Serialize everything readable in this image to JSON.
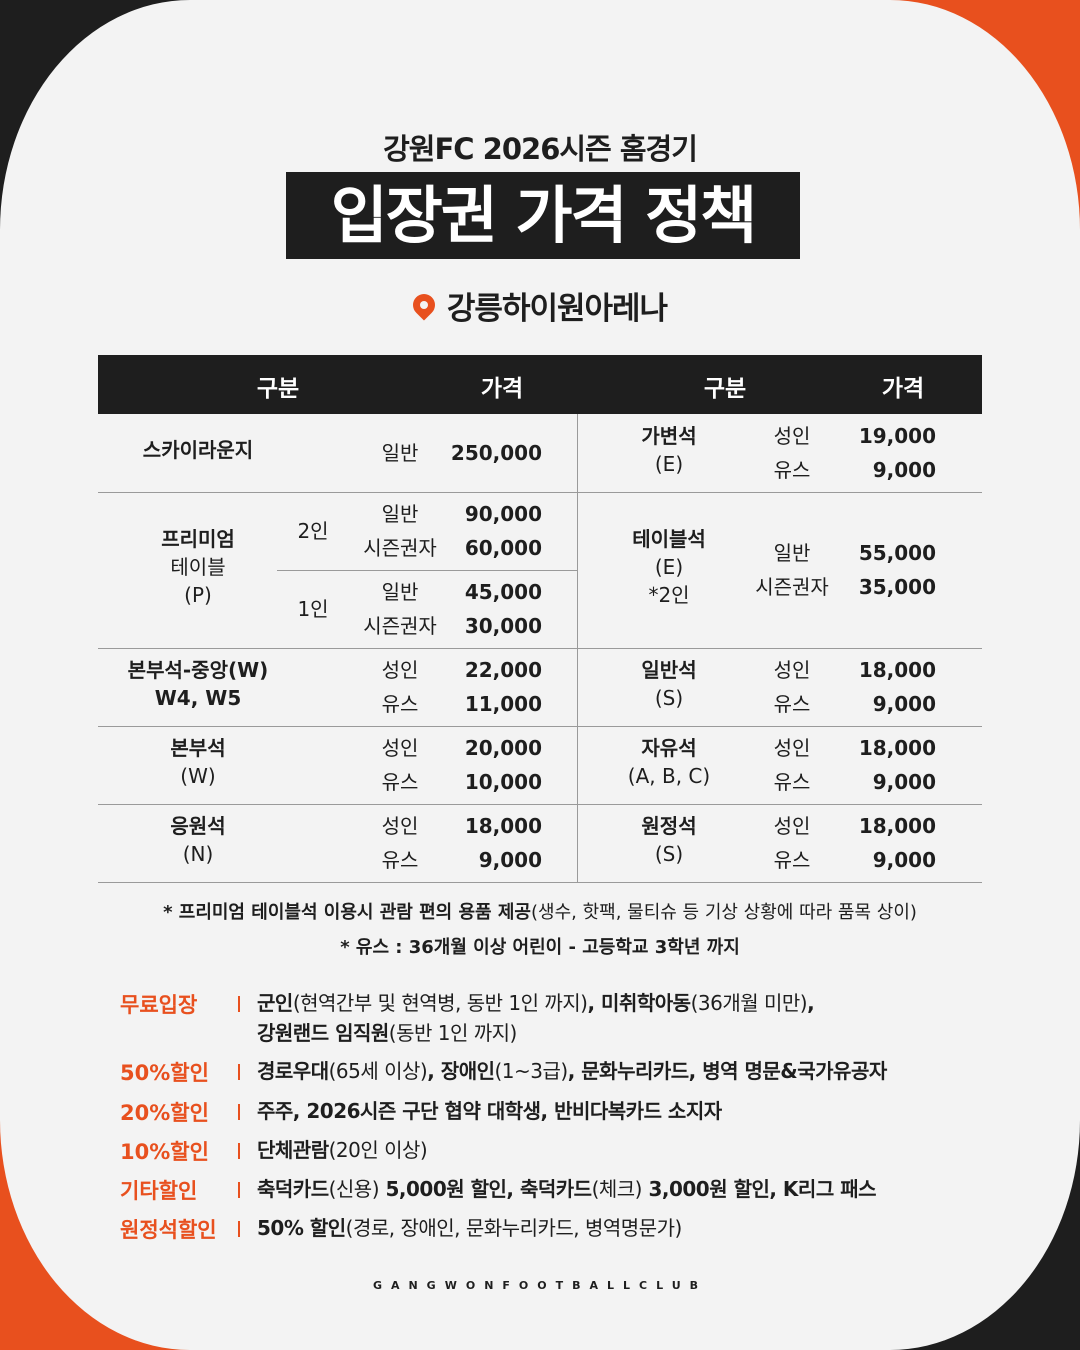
{
  "header": {
    "subtitle": "강원FC 2026시즌 홈경기",
    "title": "입장권 가격 정책",
    "location": "강릉하이원아레나",
    "pin_icon": "location-pin-icon",
    "accent": "#e8501e",
    "dark": "#1e1e1e"
  },
  "table": {
    "headers": [
      "구분",
      "가격",
      "구분",
      "가격"
    ],
    "left": [
      {
        "name": [
          "스카이라운지"
        ],
        "items": [
          {
            "label": "일반",
            "price": "250,000"
          }
        ]
      },
      {
        "name": [
          "프리미엄",
          "테이블",
          "(P)"
        ],
        "groups": [
          {
            "sub": "2인",
            "items": [
              {
                "label": "일반",
                "price": "90,000"
              },
              {
                "label": "시즌권자",
                "price": "60,000"
              }
            ]
          },
          {
            "sub": "1인",
            "items": [
              {
                "label": "일반",
                "price": "45,000"
              },
              {
                "label": "시즌권자",
                "price": "30,000"
              }
            ]
          }
        ]
      },
      {
        "name": [
          "본부석-중앙(W)",
          "W4, W5"
        ],
        "items": [
          {
            "label": "성인",
            "price": "22,000"
          },
          {
            "label": "유스",
            "price": "11,000"
          }
        ]
      },
      {
        "name": [
          "본부석",
          "(W)"
        ],
        "items": [
          {
            "label": "성인",
            "price": "20,000"
          },
          {
            "label": "유스",
            "price": "10,000"
          }
        ]
      },
      {
        "name": [
          "응원석",
          "(N)"
        ],
        "items": [
          {
            "label": "성인",
            "price": "18,000"
          },
          {
            "label": "유스",
            "price": "9,000"
          }
        ]
      }
    ],
    "right": [
      {
        "name": [
          "가변석",
          "(E)"
        ],
        "items": [
          {
            "label": "성인",
            "price": "19,000"
          },
          {
            "label": "유스",
            "price": "9,000"
          }
        ]
      },
      {
        "name": [
          "테이블석",
          "(E)",
          "*2인"
        ],
        "items": [
          {
            "label": "일반",
            "price": "55,000"
          },
          {
            "label": "시즌권자",
            "price": "35,000"
          }
        ]
      },
      {
        "name": [
          "일반석",
          "(S)"
        ],
        "items": [
          {
            "label": "성인",
            "price": "18,000"
          },
          {
            "label": "유스",
            "price": "9,000"
          }
        ]
      },
      {
        "name": [
          "자유석",
          "(A, B, C)"
        ],
        "items": [
          {
            "label": "성인",
            "price": "18,000"
          },
          {
            "label": "유스",
            "price": "9,000"
          }
        ]
      },
      {
        "name": [
          "원정석",
          "(S)"
        ],
        "items": [
          {
            "label": "성인",
            "price": "18,000"
          },
          {
            "label": "유스",
            "price": "9,000"
          }
        ]
      }
    ]
  },
  "notes": {
    "note1_bold": "* 프리미엄 테이블석 이용시 관람 편의 용품 제공",
    "note1_regular": "(생수, 핫팩, 물티슈 등 기상 상황에 따라 품목 상이)",
    "note2": "* 유스 : 36개월 이상 어린이 - 고등학교 3학년 까지"
  },
  "discounts": [
    {
      "label": "무료입장",
      "lines": [
        [
          {
            "b": true,
            "t": "군인"
          },
          {
            "t": "(현역간부 및 현역병, 동반 1인 까지)"
          },
          {
            "b": true,
            "t": ", 미취학아동"
          },
          {
            "t": "(36개월 미만)"
          },
          {
            "b": true,
            "t": ","
          }
        ],
        [
          {
            "b": true,
            "t": "강원랜드 임직원"
          },
          {
            "t": "(동반 1인 까지)"
          }
        ]
      ]
    },
    {
      "label": "50%할인",
      "lines": [
        [
          {
            "b": true,
            "t": "경로우대"
          },
          {
            "t": "(65세 이상)"
          },
          {
            "b": true,
            "t": ", 장애인"
          },
          {
            "t": "(1~3급)"
          },
          {
            "b": true,
            "t": ", 문화누리카드, 병역 명문&국가유공자"
          }
        ]
      ]
    },
    {
      "label": "20%할인",
      "lines": [
        [
          {
            "b": true,
            "t": "주주, 2026시즌 구단 협약 대학생, 반비다복카드 소지자"
          }
        ]
      ]
    },
    {
      "label": "10%할인",
      "lines": [
        [
          {
            "b": true,
            "t": "단체관람"
          },
          {
            "t": "(20인 이상)"
          }
        ]
      ]
    },
    {
      "label": "기타할인",
      "lines": [
        [
          {
            "b": true,
            "t": "축덕카드"
          },
          {
            "t": "(신용)"
          },
          {
            "b": true,
            "t": " 5,000원 할인, 축덕카드"
          },
          {
            "t": "(체크)"
          },
          {
            "b": true,
            "t": " 3,000원 할인, K리그 패스"
          }
        ]
      ]
    },
    {
      "label": "원정석할인",
      "lines": [
        [
          {
            "b": true,
            "t": "50% 할인"
          },
          {
            "t": "(경로, 장애인, 문화누리카드, 병역명문가)"
          }
        ]
      ]
    }
  ],
  "footer": {
    "text": "GANGWONFOOTBALLCLUB"
  }
}
